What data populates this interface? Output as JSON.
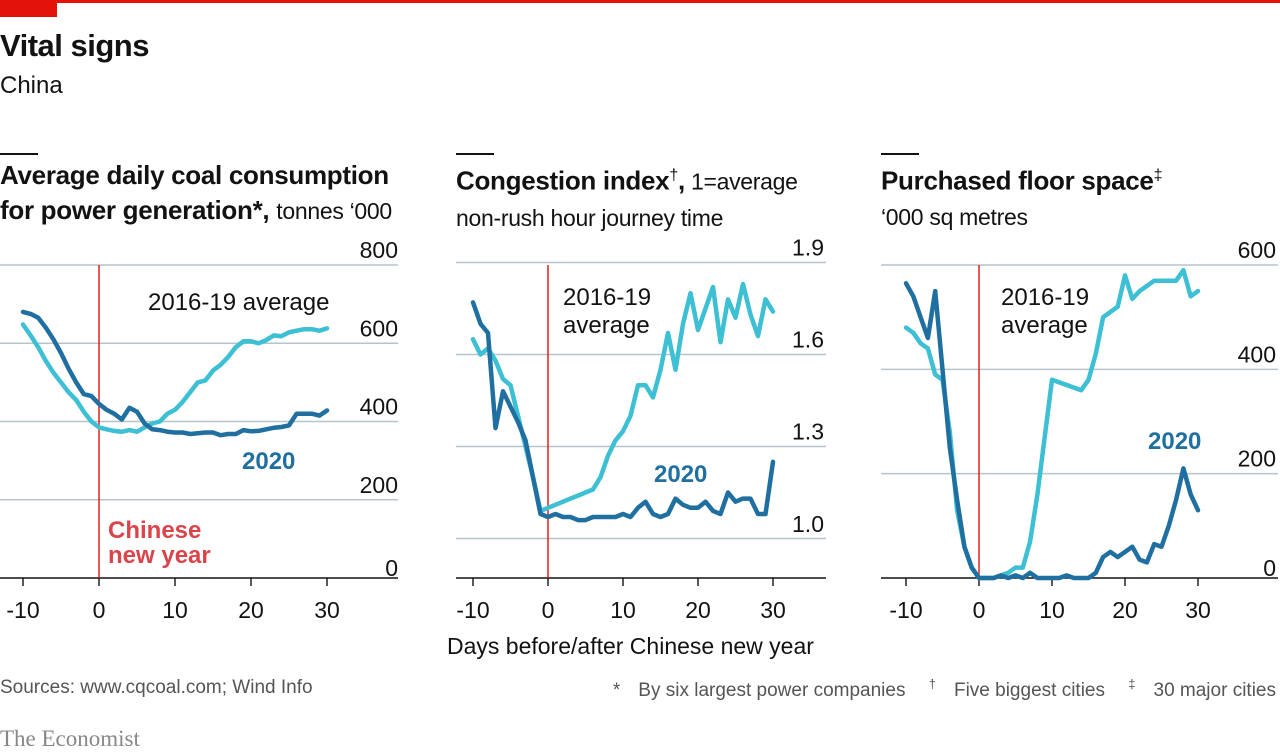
{
  "header": {
    "title": "Vital signs",
    "subtitle": "China"
  },
  "x_axis_title": "Days before/after Chinese new year",
  "source": "Sources: www.cqcoal.com; Wind Info",
  "footnotes": [
    {
      "mark": "*",
      "text": "By six largest power companies"
    },
    {
      "mark": "†",
      "text": "Five biggest cities"
    },
    {
      "mark": "‡",
      "text": "30 major cities"
    }
  ],
  "brand": "The Economist",
  "colors": {
    "series_2020": "#1f6fa0",
    "series_avg": "#3dbfd4",
    "marker_line": "#e3120b",
    "marker_text": "#db444b",
    "gridline": "#b6c4cc",
    "accent_red": "#e3120b"
  },
  "panels": [
    {
      "heading_bold": "Average daily coal consumption",
      "heading_bold2": "for power generation*,",
      "heading_unit": "tonnes ‘000"
    },
    {
      "heading_bold": "Congestion index",
      "heading_sup": "†",
      "heading_rest": ", 1=average",
      "heading_unit": "non-rush hour journey time"
    },
    {
      "heading_bold": "Purchased floor space",
      "heading_sup": "‡",
      "heading_unit": "‘000 sq metres"
    }
  ],
  "chart_data": [
    {
      "type": "line",
      "title": "Average daily coal consumption for power generation*, tonnes ‘000",
      "xlabel": "Days before/after Chinese new year",
      "x_ticks": [
        -10,
        0,
        10,
        20,
        30
      ],
      "y_ticks": [
        0,
        200,
        400,
        600,
        800
      ],
      "xlim": [
        -11,
        40
      ],
      "ylim": [
        0,
        800
      ],
      "annotations": {
        "marker": "Chinese new year",
        "marker_line1": "Chinese",
        "marker_line2": "new year",
        "marker_x": 0
      },
      "series": [
        {
          "name": "2020",
          "x": [
            -10,
            -9,
            -8,
            -7,
            -6,
            -5,
            -4,
            -3,
            -2,
            -1,
            0,
            1,
            2,
            3,
            4,
            5,
            6,
            7,
            8,
            9,
            10,
            11,
            12,
            13,
            14,
            15,
            16,
            17,
            18,
            19,
            20,
            21,
            22,
            23,
            24,
            25,
            26,
            27,
            28,
            29,
            30
          ],
          "values": [
            680,
            675,
            665,
            640,
            610,
            575,
            535,
            500,
            470,
            465,
            445,
            430,
            420,
            405,
            435,
            425,
            395,
            380,
            378,
            374,
            372,
            372,
            368,
            370,
            372,
            372,
            365,
            368,
            368,
            378,
            375,
            376,
            380,
            384,
            386,
            390,
            420,
            420,
            420,
            415,
            428
          ]
        },
        {
          "name": "2016-19 average",
          "x": [
            -10,
            -9,
            -8,
            -7,
            -6,
            -5,
            -4,
            -3,
            -2,
            -1,
            0,
            1,
            2,
            3,
            4,
            5,
            6,
            7,
            8,
            9,
            10,
            11,
            12,
            13,
            14,
            15,
            16,
            17,
            18,
            19,
            20,
            21,
            22,
            23,
            24,
            25,
            26,
            27,
            28,
            29,
            30
          ],
          "values": [
            648,
            620,
            590,
            555,
            525,
            500,
            475,
            455,
            425,
            400,
            385,
            380,
            376,
            374,
            378,
            374,
            385,
            395,
            400,
            420,
            430,
            450,
            475,
            500,
            505,
            530,
            545,
            565,
            590,
            605,
            605,
            600,
            608,
            620,
            618,
            628,
            632,
            636,
            636,
            632,
            638
          ]
        }
      ]
    },
    {
      "type": "line",
      "title": "Congestion index†, 1=average non-rush hour journey time",
      "xlabel": "Days before/after Chinese new year",
      "x_ticks": [
        -10,
        0,
        10,
        20,
        30
      ],
      "y_ticks": [
        "1.0",
        "1.3",
        "1.6",
        "1.9"
      ],
      "xlim": [
        -12,
        33
      ],
      "ylim": [
        0.9,
        1.9
      ],
      "series": [
        {
          "name": "2020",
          "x": [
            -10,
            -9,
            -8,
            -7,
            -6,
            -5,
            -4,
            -3,
            -2,
            -1,
            0,
            1,
            2,
            3,
            4,
            5,
            6,
            7,
            8,
            9,
            10,
            11,
            12,
            13,
            14,
            15,
            16,
            17,
            18,
            19,
            20,
            21,
            22,
            23,
            24,
            25,
            26,
            27,
            28,
            29,
            30
          ],
          "values": [
            1.77,
            1.7,
            1.67,
            1.36,
            1.48,
            1.43,
            1.38,
            1.32,
            1.2,
            1.08,
            1.07,
            1.08,
            1.07,
            1.07,
            1.06,
            1.06,
            1.07,
            1.07,
            1.07,
            1.07,
            1.08,
            1.07,
            1.1,
            1.12,
            1.08,
            1.07,
            1.08,
            1.13,
            1.11,
            1.1,
            1.1,
            1.12,
            1.09,
            1.08,
            1.15,
            1.12,
            1.13,
            1.13,
            1.08,
            1.08,
            1.25
          ]
        },
        {
          "name": "2016-19 average",
          "x": [
            -10,
            -9,
            -8,
            -7,
            -6,
            -5,
            -4,
            -3,
            -2,
            -1,
            0,
            1,
            2,
            3,
            4,
            5,
            6,
            7,
            8,
            9,
            10,
            11,
            12,
            13,
            14,
            15,
            16,
            17,
            18,
            19,
            20,
            21,
            22,
            23,
            24,
            25,
            26,
            27,
            28,
            29,
            30
          ],
          "values": [
            1.65,
            1.6,
            1.62,
            1.58,
            1.52,
            1.5,
            1.4,
            1.3,
            1.2,
            1.09,
            1.1,
            1.11,
            1.12,
            1.13,
            1.14,
            1.15,
            1.16,
            1.2,
            1.27,
            1.32,
            1.35,
            1.4,
            1.5,
            1.5,
            1.46,
            1.55,
            1.67,
            1.55,
            1.7,
            1.8,
            1.68,
            1.75,
            1.82,
            1.64,
            1.78,
            1.72,
            1.83,
            1.73,
            1.66,
            1.78,
            1.74
          ]
        }
      ]
    },
    {
      "type": "line",
      "title": "Purchased floor space‡, ‘000 sq metres",
      "xlabel": "Days before/after Chinese new year",
      "x_ticks": [
        -10,
        0,
        10,
        20,
        30
      ],
      "y_ticks": [
        0,
        200,
        400,
        600
      ],
      "xlim": [
        -13,
        40
      ],
      "ylim": [
        0,
        600
      ],
      "series": [
        {
          "name": "2020",
          "x": [
            -10,
            -9,
            -8,
            -7,
            -6,
            -5,
            -4,
            -3,
            -2,
            -1,
            0,
            1,
            2,
            3,
            4,
            5,
            6,
            7,
            8,
            9,
            10,
            11,
            12,
            13,
            14,
            15,
            16,
            17,
            18,
            19,
            20,
            21,
            22,
            23,
            24,
            25,
            26,
            27,
            28,
            29,
            30
          ],
          "values": [
            565,
            540,
            500,
            460,
            550,
            400,
            250,
            150,
            60,
            20,
            0,
            0,
            0,
            5,
            0,
            5,
            0,
            10,
            0,
            0,
            0,
            0,
            5,
            0,
            0,
            0,
            10,
            40,
            50,
            40,
            50,
            60,
            35,
            30,
            65,
            60,
            100,
            150,
            210,
            160,
            130
          ]
        },
        {
          "name": "2016-19 average",
          "x": [
            -10,
            -9,
            -8,
            -7,
            -6,
            -5,
            -4,
            -3,
            -2,
            -1,
            0,
            1,
            2,
            3,
            4,
            5,
            6,
            7,
            8,
            9,
            10,
            11,
            12,
            13,
            14,
            15,
            16,
            17,
            18,
            19,
            20,
            21,
            22,
            23,
            24,
            25,
            26,
            27,
            28,
            29,
            30
          ],
          "values": [
            480,
            470,
            450,
            440,
            390,
            380,
            280,
            130,
            60,
            20,
            0,
            0,
            0,
            5,
            10,
            20,
            20,
            70,
            160,
            270,
            380,
            375,
            370,
            365,
            360,
            380,
            430,
            500,
            510,
            520,
            580,
            535,
            550,
            560,
            570,
            570,
            570,
            570,
            590,
            540,
            550
          ]
        }
      ]
    }
  ],
  "series_labels": {
    "panel1_avg": "2016-19 average",
    "panel1_2020": "2020",
    "panel2_avg_line1": "2016-19",
    "panel2_avg_line2": "average",
    "panel2_2020": "2020",
    "panel3_avg_line1": "2016-19",
    "panel3_avg_line2": "average",
    "panel3_2020": "2020"
  }
}
